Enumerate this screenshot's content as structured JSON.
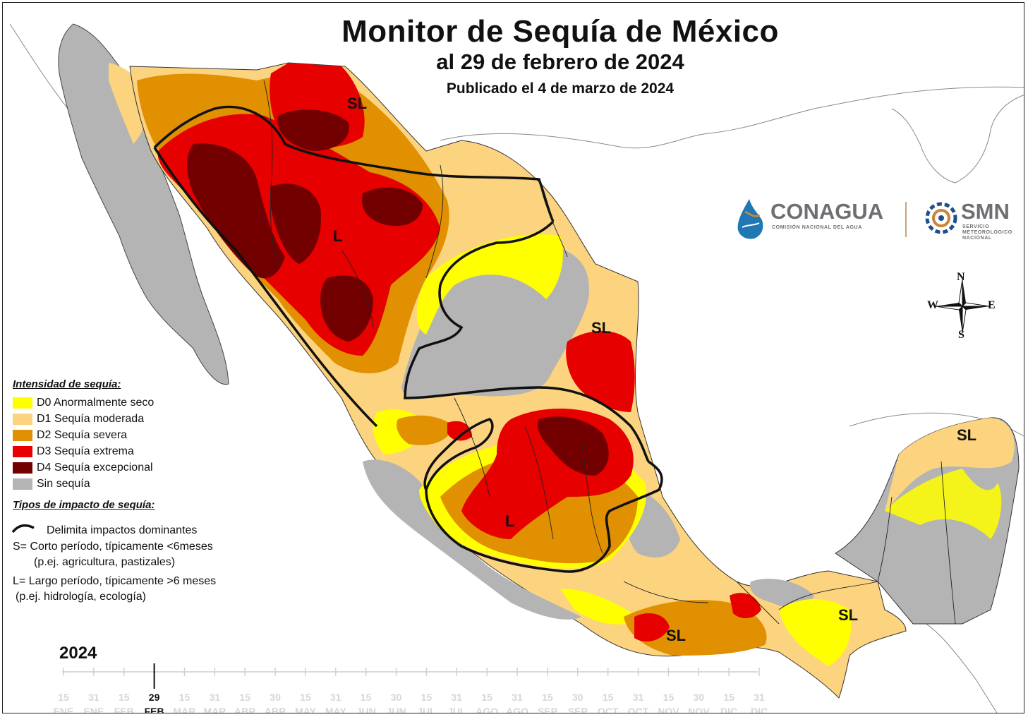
{
  "title": "Monitor de Sequía de México",
  "subtitle": "al 29 de febrero de 2024",
  "published": "Publicado el 4 de marzo de 2024",
  "legend": {
    "intensity_heading": "Intensidad de sequía:",
    "categories": [
      {
        "code": "D0",
        "label": "D0 Anormalmente seco",
        "color": "#ffff00"
      },
      {
        "code": "D1",
        "label": "D1 Sequía moderada",
        "color": "#fcd37f"
      },
      {
        "code": "D2",
        "label": "D2 Sequía severa",
        "color": "#e09000"
      },
      {
        "code": "D3",
        "label": "D3 Sequía extrema",
        "color": "#e60000"
      },
      {
        "code": "D4",
        "label": "D4 Sequía excepcional",
        "color": "#730000"
      },
      {
        "code": "none",
        "label": "Sin sequía",
        "color": "#b4b4b4"
      }
    ],
    "impact_heading": "Tipos de impacto de sequía:",
    "impact_line_label": "Delimita impactos dominantes",
    "short_term": "S= Corto período, típicamente <6meses",
    "short_term_examples": "(p.ej. agricultura, pastizales)",
    "long_term": "L= Largo período, típicamente >6 meses",
    "long_term_examples": "(p.ej. hidrología, ecología)"
  },
  "map_labels": [
    {
      "id": "sl-north",
      "text": "SL"
    },
    {
      "id": "l-northwest",
      "text": "L"
    },
    {
      "id": "sl-northeast",
      "text": "SL"
    },
    {
      "id": "l-central",
      "text": "L"
    },
    {
      "id": "sl-yucatan",
      "text": "SL"
    },
    {
      "id": "sl-south",
      "text": "SL"
    },
    {
      "id": "sl-southeast",
      "text": "SL"
    }
  ],
  "logos": {
    "conagua": "CONAGUA",
    "conagua_sub": "COMISIÓN NACIONAL DEL AGUA",
    "smn": "SMN",
    "smn_sub": "SERVICIO METEOROLÓGICO NACIONAL"
  },
  "compass": {
    "n": "N",
    "s": "S",
    "e": "E",
    "w": "W"
  },
  "timeline": {
    "year": "2024",
    "ticks": [
      {
        "day": "15",
        "month": "ENE",
        "active": false
      },
      {
        "day": "31",
        "month": "ENE",
        "active": false
      },
      {
        "day": "15",
        "month": "FEB",
        "active": false
      },
      {
        "day": "29",
        "month": "FEB",
        "active": true
      },
      {
        "day": "15",
        "month": "MAR",
        "active": false
      },
      {
        "day": "31",
        "month": "MAR",
        "active": false
      },
      {
        "day": "15",
        "month": "ABR",
        "active": false
      },
      {
        "day": "30",
        "month": "ABR",
        "active": false
      },
      {
        "day": "15",
        "month": "MAY",
        "active": false
      },
      {
        "day": "31",
        "month": "MAY",
        "active": false
      },
      {
        "day": "15",
        "month": "JUN",
        "active": false
      },
      {
        "day": "30",
        "month": "JUN",
        "active": false
      },
      {
        "day": "15",
        "month": "JUL",
        "active": false
      },
      {
        "day": "31",
        "month": "JUL",
        "active": false
      },
      {
        "day": "15",
        "month": "AGO",
        "active": false
      },
      {
        "day": "31",
        "month": "AGO",
        "active": false
      },
      {
        "day": "15",
        "month": "SEP",
        "active": false
      },
      {
        "day": "30",
        "month": "SEP",
        "active": false
      },
      {
        "day": "15",
        "month": "OCT",
        "active": false
      },
      {
        "day": "31",
        "month": "OCT",
        "active": false
      },
      {
        "day": "15",
        "month": "NOV",
        "active": false
      },
      {
        "day": "30",
        "month": "NOV",
        "active": false
      },
      {
        "day": "15",
        "month": "DIC",
        "active": false
      },
      {
        "day": "31",
        "month": "DIC",
        "active": false
      }
    ]
  }
}
